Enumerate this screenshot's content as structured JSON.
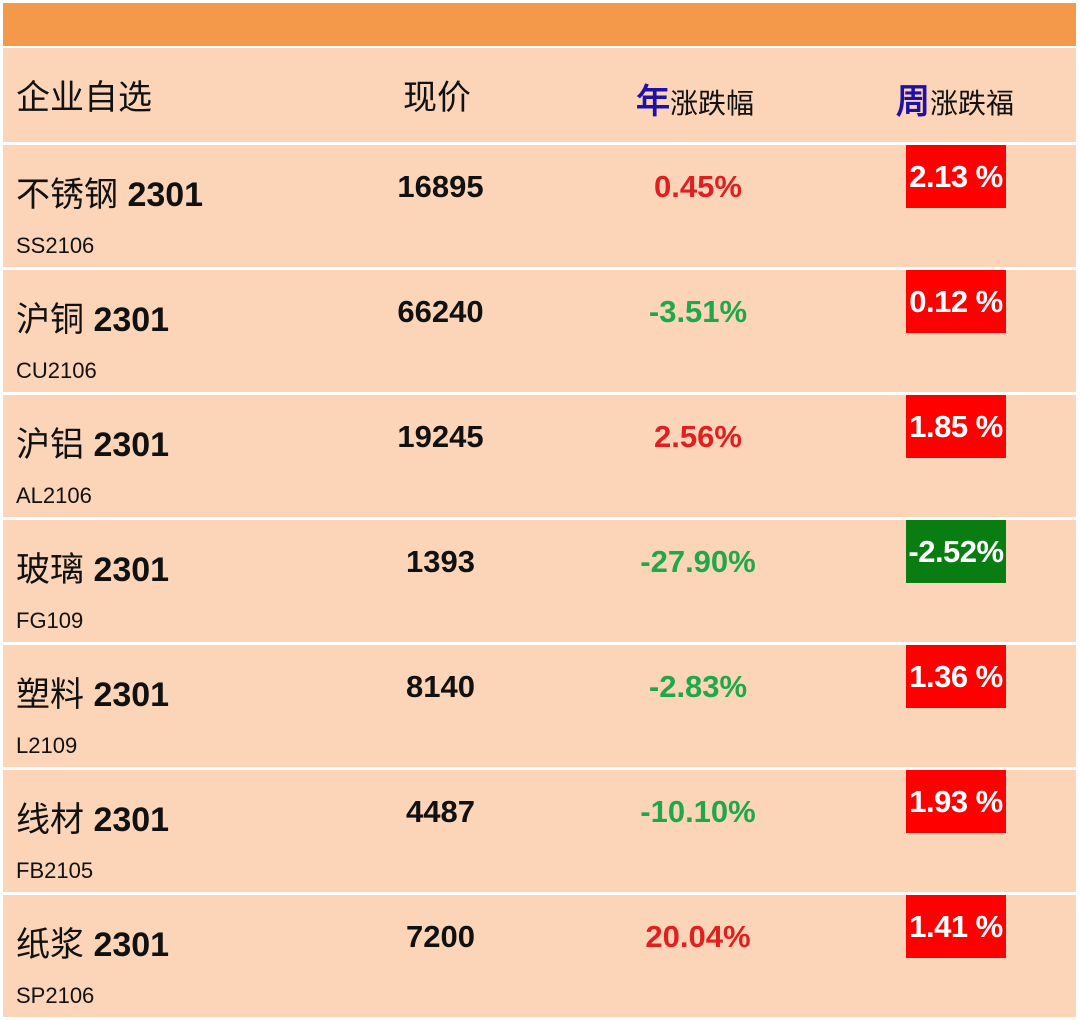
{
  "header": {
    "name_label": "企业自选",
    "price_label": "现价",
    "year_accent": "年",
    "year_label": "涨跌幅",
    "week_accent": "周",
    "week_label": "涨跌福"
  },
  "colors": {
    "top_bar": "#f4994a",
    "row_bg": "#fcd4b8",
    "accent_blue": "#1e10a8",
    "up_red": "#e02020",
    "down_green": "#1fa84a",
    "badge_red": "#ff0000",
    "badge_green": "#0a7d12"
  },
  "rows": [
    {
      "name_cn": "不锈钢",
      "name_num": "2301",
      "code": "SS2106",
      "price": "16895",
      "year_change": "0.45%",
      "year_dir": "up",
      "week_change": "2.13 %",
      "week_dir": "up"
    },
    {
      "name_cn": "沪铜",
      "name_num": "2301",
      "code": "CU2106",
      "price": "66240",
      "year_change": "-3.51%",
      "year_dir": "down",
      "week_change": "0.12 %",
      "week_dir": "up"
    },
    {
      "name_cn": "沪铝",
      "name_num": "2301",
      "code": "AL2106",
      "price": "19245",
      "year_change": "2.56%",
      "year_dir": "up",
      "week_change": "1.85 %",
      "week_dir": "up"
    },
    {
      "name_cn": "玻璃",
      "name_num": "2301",
      "code": "FG109",
      "price": "1393",
      "year_change": "-27.90%",
      "year_dir": "down",
      "week_change": "-2.52%",
      "week_dir": "down"
    },
    {
      "name_cn": "塑料",
      "name_num": "2301",
      "code": "L2109",
      "price": "8140",
      "year_change": "-2.83%",
      "year_dir": "down",
      "week_change": "1.36 %",
      "week_dir": "up"
    },
    {
      "name_cn": "线材",
      "name_num": "2301",
      "code": "FB2105",
      "price": "4487",
      "year_change": "-10.10%",
      "year_dir": "down",
      "week_change": "1.93 %",
      "week_dir": "up"
    },
    {
      "name_cn": "纸浆",
      "name_num": "2301",
      "code": "SP2106",
      "price": "7200",
      "year_change": "20.04%",
      "year_dir": "up",
      "week_change": "1.41 %",
      "week_dir": "up"
    }
  ]
}
